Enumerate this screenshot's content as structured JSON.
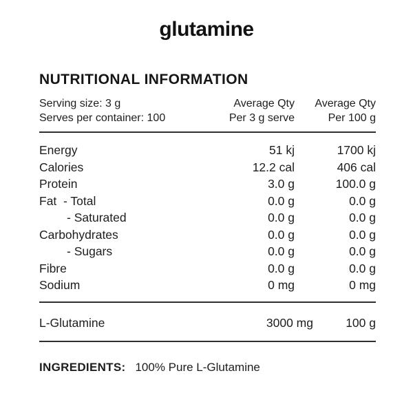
{
  "title": "glutamine",
  "panel": {
    "heading": "NUTRITIONAL INFORMATION",
    "serving": {
      "size": "Serving size: 3 g",
      "per_container": "Serves per container: 100"
    },
    "columns": {
      "per_serve": {
        "line1": "Average Qty",
        "line2": "Per 3 g serve"
      },
      "per_100g": {
        "line1": "Average Qty",
        "line2": "Per 100 g"
      }
    },
    "rows": [
      {
        "label": "Energy",
        "per_serve": "51 kj",
        "per_100g": "1700 kj"
      },
      {
        "label": "Calories",
        "per_serve": "12.2 cal",
        "per_100g": "406 cal"
      },
      {
        "label": "Protein",
        "per_serve": "3.0 g",
        "per_100g": "100.0 g"
      },
      {
        "label": "Fat  - Total",
        "per_serve": "0.0 g",
        "per_100g": "0.0 g"
      },
      {
        "label": "- Saturated",
        "per_serve": "0.0 g",
        "per_100g": "0.0 g"
      },
      {
        "label": "Carbohydrates",
        "per_serve": "0.0 g",
        "per_100g": "0.0 g"
      },
      {
        "label": "- Sugars",
        "per_serve": "0.0 g",
        "per_100g": "0.0 g"
      },
      {
        "label": "Fibre",
        "per_serve": "0.0 g",
        "per_100g": "0.0 g"
      },
      {
        "label": "Sodium",
        "per_serve": "0 mg",
        "per_100g": "0 mg"
      }
    ],
    "active_row": {
      "label": "L-Glutamine",
      "per_serve": "3000 mg",
      "per_100g": "100 g"
    },
    "ingredients": {
      "label": "INGREDIENTS:",
      "value": "100% Pure L-Glutamine"
    }
  },
  "colors": {
    "text": "#1d1d1d",
    "rule": "#2f2f2f",
    "background": "#ffffff"
  }
}
